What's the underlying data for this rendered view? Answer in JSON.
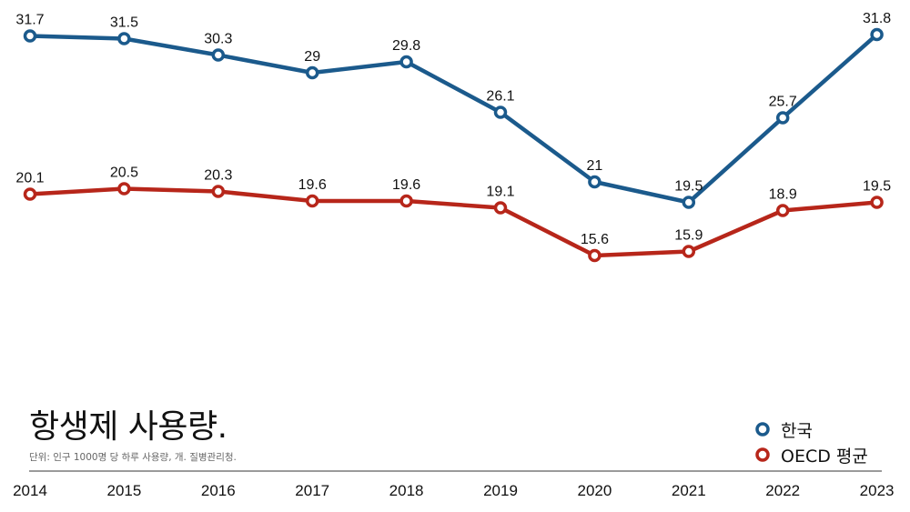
{
  "chart_data": {
    "type": "line",
    "title": "항생제 사용량.",
    "subtitle": "단위: 인구 1000명 당 하루 사용량, 개. 질병관리청.",
    "xlabel": "",
    "ylabel": "",
    "x": [
      "2014",
      "2015",
      "2016",
      "2017",
      "2018",
      "2019",
      "2020",
      "2021",
      "2022",
      "2023"
    ],
    "series": [
      {
        "name": "한국",
        "color": "#1b5a8c",
        "values": [
          31.7,
          31.5,
          30.3,
          29,
          29.8,
          26.1,
          21,
          19.5,
          25.7,
          31.8
        ],
        "labels": [
          "31.7",
          "31.5",
          "30.3",
          "29",
          "29.8",
          "26.1",
          "21",
          "19.5",
          "25.7",
          "31.8"
        ]
      },
      {
        "name": "OECD 평균",
        "color": "#b7261a",
        "values": [
          20.1,
          20.5,
          20.3,
          19.6,
          19.6,
          19.1,
          15.6,
          15.9,
          18.9,
          19.5
        ],
        "labels": [
          "20.1",
          "20.5",
          "20.3",
          "19.6",
          "19.6",
          "19.1",
          "15.6",
          "15.9",
          "18.9",
          "19.5"
        ]
      }
    ],
    "grid": false,
    "legend_position": "bottom-right"
  }
}
